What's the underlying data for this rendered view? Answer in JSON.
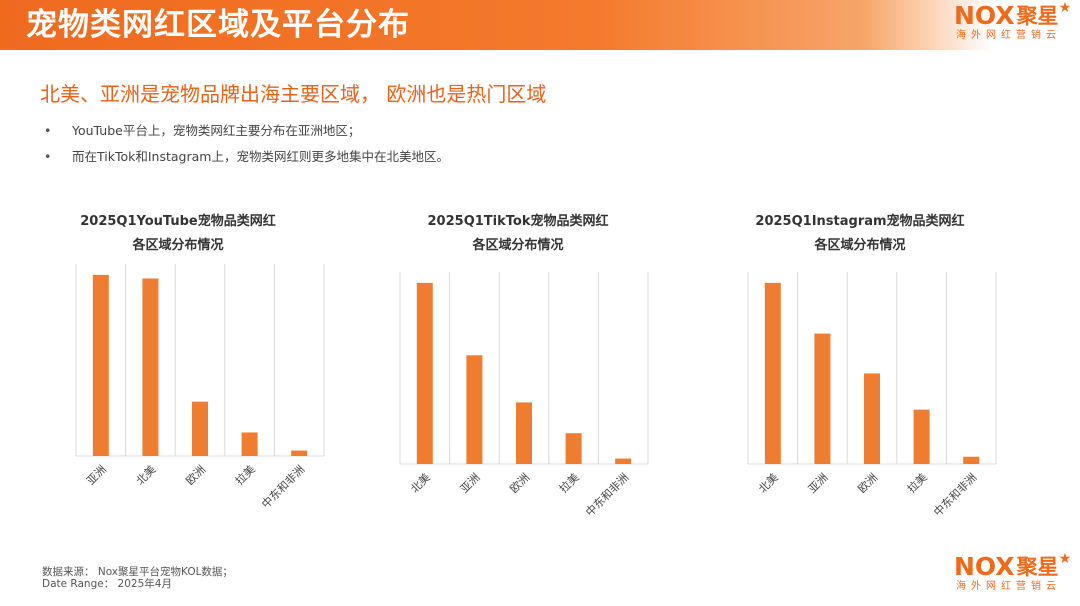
{
  "page": {
    "title": "宠物类网红区域及平台分布",
    "headline": "北美、亚洲是宠物品牌出海主要区域， 欧洲也是热门区域",
    "bullets": [
      "YouTube平台上，宠物类网红主要分布在亚洲地区；",
      "而在TikTok和Instagram上，宠物类网红则更多地集中在北美地区。"
    ],
    "source_line1": "数据来源：   Nox聚星平台宠物KOL数据；",
    "source_line2": "Date  Range：  2025年4月"
  },
  "logo": {
    "text": "NOX",
    "cn_text": "聚星",
    "subtitle": "海外网红营销云",
    "color": "#f06a1c"
  },
  "colors": {
    "bar": "#ef7d31",
    "accent": "#e8621a",
    "grid": "#d9d9d9"
  },
  "chart_data": [
    {
      "type": "bar",
      "title_line1": "2025Q1YouTube宠物品类网红",
      "title_line2": "各区域分布情况",
      "categories": [
        "亚洲",
        "北美",
        "欧洲",
        "拉美",
        "中东和非洲"
      ],
      "values": [
        100,
        98,
        30,
        13,
        3
      ],
      "ylim": [
        0,
        106
      ],
      "grid": true,
      "axis_labels": false
    },
    {
      "type": "bar",
      "title_line1": "2025Q1TikTok宠物品类网红",
      "title_line2": "各区域分布情况",
      "categories": [
        "北美",
        "亚洲",
        "欧洲",
        "拉美",
        "中东和非洲"
      ],
      "values": [
        100,
        60,
        34,
        17,
        3
      ],
      "ylim": [
        0,
        106
      ],
      "grid": true,
      "axis_labels": false
    },
    {
      "type": "bar",
      "title_line1": "2025Q1Instagram宠物品类网红",
      "title_line2": "各区域分布情况",
      "categories": [
        "北美",
        "亚洲",
        "欧洲",
        "拉美",
        "中东和非洲"
      ],
      "values": [
        100,
        72,
        50,
        30,
        4
      ],
      "ylim": [
        0,
        106
      ],
      "grid": true,
      "axis_labels": false
    }
  ]
}
